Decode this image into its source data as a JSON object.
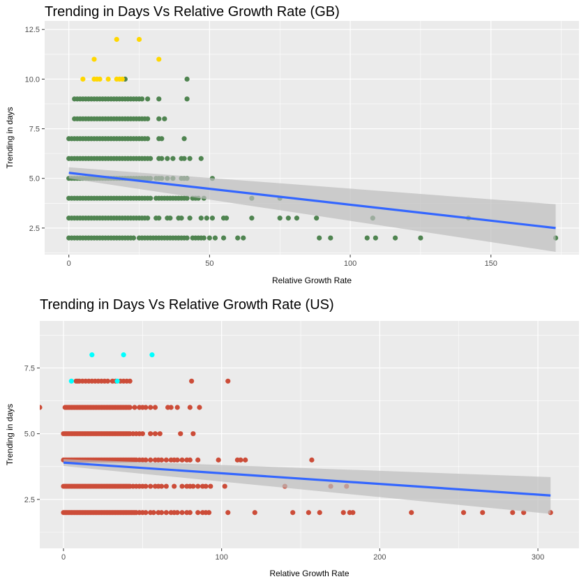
{
  "chart_data": [
    {
      "type": "scatter",
      "title": "Trending in Days Vs Relative Growth Rate (GB)",
      "xlabel": "Relative Growth Rate",
      "ylabel": "Trending in days",
      "xlim": [
        -8.6,
        181.3
      ],
      "ylim": [
        1.16,
        12.93
      ],
      "xticks": [
        0,
        50,
        100,
        150
      ],
      "xtick_labels": [
        "0",
        "50",
        "100",
        "150"
      ],
      "yticks": [
        2.5,
        5.0,
        7.5,
        10.0,
        12.5
      ],
      "ytick_labels": [
        "2.5",
        "5.0",
        "7.5",
        "10.0",
        "12.5"
      ],
      "grid": true,
      "legend": "none",
      "colors": {
        "main": "#4f8450",
        "highlight": "#ffd700",
        "trend": "#3366ff",
        "ribbon": "#bdbdbd",
        "panel": "#ebebeb"
      },
      "series": [
        {
          "color": "#4f8450",
          "rows": [
            {
              "y": 2,
              "x": [
                0,
                1,
                2,
                3,
                4,
                5,
                6,
                7,
                8,
                9,
                10,
                11,
                12,
                13,
                14,
                15,
                16,
                17,
                18,
                19,
                20,
                21,
                22,
                23,
                25,
                26,
                27,
                28,
                29,
                30,
                31,
                32,
                33,
                34,
                35,
                36,
                37,
                38,
                39,
                40,
                41,
                42,
                44,
                45,
                46,
                47,
                48,
                50,
                52,
                55,
                60,
                62,
                89,
                93,
                106,
                109,
                116,
                125,
                173
              ]
            },
            {
              "y": 3,
              "x": [
                0,
                1,
                2,
                3,
                4,
                5,
                6,
                7,
                8,
                9,
                10,
                11,
                12,
                13,
                14,
                15,
                16,
                17,
                18,
                19,
                20,
                21,
                22,
                23,
                24,
                25,
                26,
                27,
                28,
                31,
                32,
                35,
                36,
                39,
                40,
                43,
                47,
                49,
                51,
                55,
                56,
                65,
                75,
                78,
                81,
                88,
                108,
                142
              ]
            },
            {
              "y": 4,
              "x": [
                0,
                1,
                2,
                3,
                4,
                5,
                6,
                7,
                8,
                9,
                10,
                11,
                12,
                13,
                14,
                15,
                16,
                17,
                18,
                19,
                20,
                21,
                22,
                23,
                24,
                25,
                26,
                27,
                28,
                29,
                31,
                32,
                33,
                34,
                35,
                36,
                37,
                38,
                39,
                40,
                41,
                42,
                44,
                45,
                46,
                48,
                65,
                75
              ]
            },
            {
              "y": 5,
              "x": [
                0,
                1,
                2,
                3,
                4,
                5,
                6,
                7,
                8,
                9,
                10,
                11,
                12,
                13,
                14,
                15,
                16,
                17,
                18,
                19,
                20,
                21,
                22,
                23,
                24,
                25,
                26,
                27,
                28,
                29,
                31,
                32,
                33,
                35,
                37,
                40,
                41,
                42,
                51
              ]
            },
            {
              "y": 6,
              "x": [
                0,
                1,
                2,
                3,
                4,
                5,
                6,
                7,
                8,
                9,
                10,
                11,
                12,
                13,
                14,
                15,
                16,
                17,
                18,
                19,
                20,
                21,
                22,
                23,
                24,
                25,
                26,
                27,
                28,
                29,
                32,
                33,
                35,
                37,
                40,
                41,
                43,
                47
              ]
            },
            {
              "y": 7,
              "x": [
                0,
                1,
                2,
                3,
                4,
                5,
                6,
                7,
                8,
                9,
                10,
                11,
                12,
                13,
                14,
                15,
                16,
                17,
                18,
                19,
                20,
                21,
                22,
                23,
                24,
                25,
                26,
                27,
                28,
                32,
                33,
                41
              ]
            },
            {
              "y": 8,
              "x": [
                2,
                3,
                4,
                5,
                6,
                7,
                8,
                9,
                10,
                11,
                12,
                13,
                14,
                15,
                16,
                17,
                18,
                19,
                20,
                21,
                22,
                23,
                24,
                25,
                26,
                27,
                28,
                32,
                34
              ]
            },
            {
              "y": 9,
              "x": [
                2,
                3,
                4,
                5,
                6,
                7,
                8,
                9,
                10,
                11,
                12,
                13,
                14,
                15,
                16,
                17,
                18,
                19,
                20,
                21,
                22,
                23,
                24,
                25,
                26,
                28,
                32,
                42
              ]
            },
            {
              "y": 10,
              "x": [
                20,
                42
              ]
            }
          ]
        },
        {
          "color": "#ffd700",
          "rows": [
            {
              "y": 10,
              "x": [
                5,
                9,
                10,
                11,
                14,
                17,
                18,
                19
              ]
            },
            {
              "y": 11,
              "x": [
                9,
                32
              ]
            },
            {
              "y": 12,
              "x": [
                17,
                25
              ]
            }
          ]
        }
      ],
      "trend": {
        "x": [
          0,
          173
        ],
        "y": [
          5.28,
          2.5
        ],
        "ribbon_lo": [
          5.0,
          1.3
        ],
        "ribbon_hi": [
          5.56,
          3.7
        ]
      }
    },
    {
      "type": "scatter",
      "title": "Trending in Days Vs Relative Growth Rate (US)",
      "xlabel": "Relative Growth Rate",
      "ylabel": "Trending in days",
      "xlim": [
        -15,
        326
      ],
      "ylim": [
        0.64,
        9.29
      ],
      "xticks": [
        0,
        100,
        200,
        300
      ],
      "xtick_labels": [
        "0",
        "100",
        "200",
        "300"
      ],
      "yticks": [
        2.5,
        5.0,
        7.5
      ],
      "ytick_labels": [
        "2.5",
        "5.0",
        "7.5"
      ],
      "grid": true,
      "legend": "none",
      "colors": {
        "main": "#cc4c38",
        "highlight": "#00ffff",
        "trend": "#3366ff",
        "ribbon": "#bdbdbd",
        "panel": "#ebebeb"
      },
      "series": [
        {
          "color": "#cc4c38",
          "rows": [
            {
              "y": 2,
              "x": [
                0,
                1,
                2,
                3,
                4,
                5,
                6,
                7,
                8,
                9,
                10,
                11,
                12,
                13,
                14,
                15,
                16,
                17,
                18,
                19,
                20,
                21,
                22,
                23,
                24,
                25,
                26,
                27,
                28,
                29,
                30,
                31,
                32,
                33,
                34,
                35,
                36,
                37,
                38,
                39,
                40,
                41,
                42,
                43,
                44,
                45,
                46,
                48,
                50,
                52,
                55,
                57,
                60,
                62,
                65,
                68,
                70,
                72,
                75,
                78,
                80,
                85,
                88,
                90,
                92,
                104,
                121,
                145,
                155,
                162,
                177,
                181,
                183,
                220,
                253,
                265,
                284,
                291,
                308
              ]
            },
            {
              "y": 3,
              "x": [
                0,
                1,
                2,
                3,
                4,
                5,
                6,
                7,
                8,
                9,
                10,
                11,
                12,
                13,
                14,
                15,
                16,
                17,
                18,
                19,
                20,
                21,
                22,
                23,
                24,
                25,
                26,
                27,
                28,
                29,
                30,
                31,
                32,
                33,
                34,
                35,
                36,
                37,
                38,
                39,
                40,
                41,
                42,
                44,
                46,
                48,
                50,
                52,
                55,
                58,
                60,
                62,
                65,
                70,
                75,
                78,
                80,
                82,
                85,
                88,
                90,
                93,
                102,
                140,
                169,
                179
              ]
            },
            {
              "y": 4,
              "x": [
                0,
                1,
                2,
                3,
                4,
                5,
                6,
                7,
                8,
                9,
                10,
                11,
                12,
                13,
                14,
                15,
                16,
                17,
                18,
                19,
                20,
                21,
                22,
                23,
                24,
                25,
                26,
                27,
                28,
                29,
                30,
                31,
                32,
                33,
                34,
                35,
                36,
                37,
                38,
                39,
                40,
                41,
                42,
                43,
                44,
                45,
                46,
                48,
                50,
                52,
                55,
                58,
                60,
                62,
                65,
                68,
                70,
                72,
                75,
                78,
                80,
                85,
                98,
                110,
                112,
                115,
                157
              ]
            },
            {
              "y": 5,
              "x": [
                0,
                1,
                2,
                3,
                4,
                5,
                6,
                7,
                8,
                9,
                10,
                11,
                12,
                13,
                14,
                15,
                16,
                17,
                18,
                19,
                20,
                21,
                22,
                23,
                24,
                25,
                26,
                27,
                28,
                29,
                30,
                31,
                32,
                33,
                34,
                35,
                36,
                37,
                38,
                39,
                40,
                41,
                42,
                44,
                46,
                48,
                50,
                55,
                58,
                61,
                74,
                82
              ]
            },
            {
              "y": 6,
              "x": [
                -15,
                1,
                2,
                3,
                4,
                5,
                6,
                7,
                8,
                9,
                10,
                11,
                12,
                13,
                14,
                15,
                16,
                17,
                18,
                19,
                20,
                21,
                22,
                23,
                24,
                25,
                26,
                27,
                28,
                29,
                30,
                31,
                32,
                33,
                34,
                35,
                36,
                37,
                38,
                39,
                40,
                41,
                42,
                45,
                48,
                50,
                52,
                55,
                58,
                66,
                68,
                72,
                80,
                86
              ]
            },
            {
              "y": 7,
              "x": [
                8,
                9,
                10,
                12,
                14,
                16,
                18,
                20,
                22,
                24,
                26,
                28,
                31,
                33,
                36,
                38,
                40,
                42,
                81,
                104
              ]
            }
          ]
        },
        {
          "color": "#00ffff",
          "rows": [
            {
              "y": 7,
              "x": [
                5,
                34
              ]
            },
            {
              "y": 8,
              "x": [
                18,
                38,
                56
              ]
            }
          ]
        }
      ],
      "trend": {
        "x": [
          0,
          308
        ],
        "y": [
          3.9,
          2.65
        ],
        "ribbon_lo": [
          3.77,
          1.95
        ],
        "ribbon_hi": [
          4.03,
          3.35
        ]
      }
    }
  ]
}
